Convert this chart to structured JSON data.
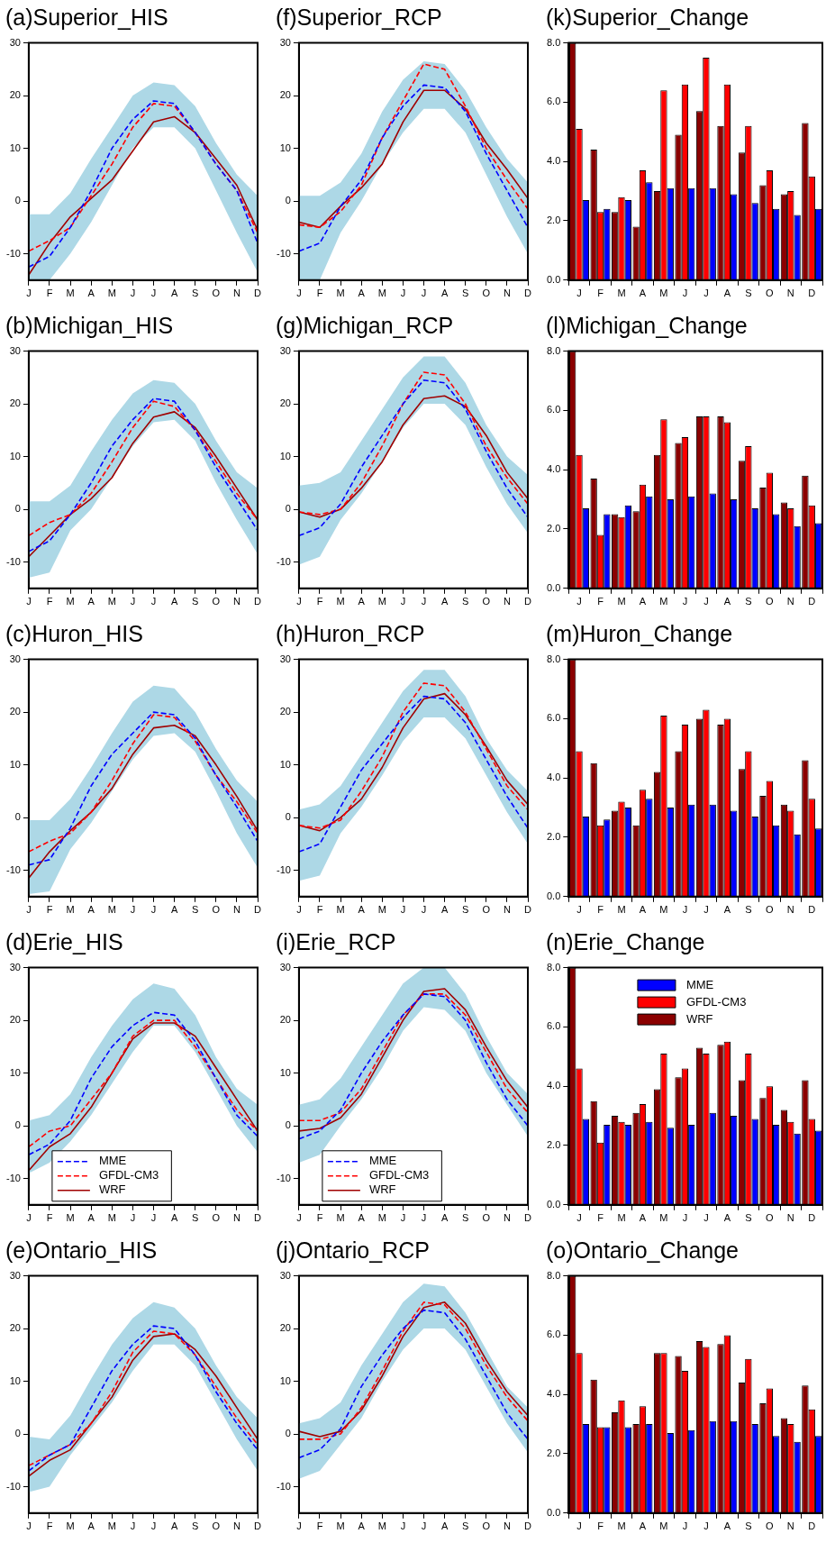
{
  "chart_data": [
    {
      "type": "line",
      "title": "(a)Superior_HIS",
      "categories": [
        "J",
        "F",
        "M",
        "A",
        "M",
        "J",
        "J",
        "A",
        "S",
        "O",
        "N",
        "D"
      ],
      "ylim": [
        -15,
        30
      ],
      "yticks": [
        -10,
        0,
        10,
        20,
        30
      ],
      "series": [
        {
          "color": "#0000ff",
          "line_style": "dashed",
          "values": [
            -12.5,
            -10.5,
            -5,
            2,
            10,
            15.5,
            19,
            18.5,
            13,
            7,
            2,
            -8
          ],
          "lower": [
            -15,
            -15,
            -10,
            -4,
            3,
            10,
            14,
            14,
            10,
            2,
            -6,
            -13.5
          ],
          "upper": [
            -2.5,
            -2.5,
            1.5,
            8,
            14,
            20,
            22.5,
            22,
            18,
            11,
            5,
            1
          ]
        },
        {
          "color": "#ff0000",
          "line_style": "dashed",
          "values": [
            -9.5,
            -7.5,
            -5,
            1,
            7,
            14,
            18.5,
            18,
            13,
            7,
            2,
            -6
          ]
        },
        {
          "color": "#a00000",
          "line_style": "solid",
          "values": [
            -14,
            -8,
            -3,
            0.5,
            4,
            9.5,
            15,
            16,
            13,
            8,
            3,
            -5.5
          ]
        }
      ]
    },
    {
      "type": "line",
      "title": "(b)Michigan_HIS",
      "categories": [
        "J",
        "F",
        "M",
        "A",
        "M",
        "J",
        "J",
        "A",
        "S",
        "O",
        "N",
        "D"
      ],
      "ylim": [
        -15,
        30
      ],
      "yticks": [
        -10,
        0,
        10,
        20,
        30
      ],
      "series": [
        {
          "color": "#0000ff",
          "line_style": "dashed",
          "values": [
            -8,
            -6,
            -1,
            5,
            12,
            17,
            21,
            20.5,
            15,
            8,
            2,
            -4
          ],
          "lower": [
            -13,
            -12,
            -4,
            0,
            6,
            12,
            16.5,
            17,
            13,
            5,
            -2,
            -8.5
          ],
          "upper": [
            1.5,
            1.5,
            4.5,
            11,
            17,
            22,
            24.5,
            24,
            20,
            13,
            7,
            4
          ]
        },
        {
          "color": "#ff0000",
          "line_style": "dashed",
          "values": [
            -5,
            -2.5,
            -1,
            3,
            9,
            15.5,
            20.5,
            19.5,
            15,
            9,
            3,
            -2
          ]
        },
        {
          "color": "#a00000",
          "line_style": "solid",
          "values": [
            -9,
            -5,
            -1,
            2,
            6,
            12.5,
            17.5,
            18.5,
            15.5,
            10,
            4,
            -2
          ]
        }
      ]
    },
    {
      "type": "line",
      "title": "(c)Huron_HIS",
      "categories": [
        "J",
        "F",
        "M",
        "A",
        "M",
        "J",
        "J",
        "A",
        "S",
        "O",
        "N",
        "D"
      ],
      "ylim": [
        -15,
        30
      ],
      "yticks": [
        -10,
        0,
        10,
        20,
        30
      ],
      "series": [
        {
          "color": "#0000ff",
          "line_style": "dashed",
          "values": [
            -9,
            -8,
            -2,
            6,
            12,
            16,
            20,
            19.5,
            15,
            8,
            2,
            -4.5
          ],
          "lower": [
            -14.5,
            -14,
            -6,
            -1,
            5,
            11,
            15.5,
            16,
            12.5,
            5,
            -3,
            -9.5
          ],
          "upper": [
            -0.5,
            -0.5,
            3.5,
            9.5,
            16,
            22,
            25,
            24.5,
            20,
            13,
            7,
            3
          ]
        },
        {
          "color": "#ff0000",
          "line_style": "dashed",
          "values": [
            -6.5,
            -4.5,
            -3,
            1,
            7,
            14,
            19.5,
            19,
            14.5,
            8,
            3,
            -3
          ]
        },
        {
          "color": "#a00000",
          "line_style": "solid",
          "values": [
            -11.5,
            -6.5,
            -2.5,
            1,
            5.5,
            12,
            17,
            17.5,
            15.5,
            10,
            4,
            -2.5
          ]
        }
      ]
    },
    {
      "type": "line",
      "title": "(d)Erie_HIS",
      "categories": [
        "J",
        "F",
        "M",
        "A",
        "M",
        "J",
        "J",
        "A",
        "S",
        "O",
        "N",
        "D"
      ],
      "ylim": [
        -15,
        30
      ],
      "yticks": [
        -10,
        0,
        10,
        20,
        30
      ],
      "legend": "bottom left",
      "series": [
        {
          "name": "MME",
          "color": "#0000ff",
          "line_style": "dashed",
          "values": [
            -5.5,
            -3.5,
            1,
            9,
            15,
            19,
            21.5,
            21,
            16,
            9,
            2,
            -2
          ],
          "lower": [
            -9,
            -7,
            -3,
            2,
            8,
            14,
            19,
            19,
            14,
            7,
            0,
            -5
          ],
          "upper": [
            1,
            2,
            6,
            13,
            19,
            24,
            27,
            26,
            21,
            13,
            7,
            4
          ]
        },
        {
          "name": "GFDL-CM3",
          "color": "#ff0000",
          "line_style": "dashed",
          "values": [
            -4,
            -1,
            0,
            5,
            10,
            17,
            20,
            20,
            15,
            9,
            3,
            -1
          ]
        },
        {
          "name": "WRF",
          "color": "#a00000",
          "line_style": "solid",
          "values": [
            -8.5,
            -4,
            -1.5,
            3.5,
            10,
            16.5,
            19.5,
            19.5,
            17,
            11,
            5,
            -1
          ]
        }
      ]
    },
    {
      "type": "line",
      "title": "(e)Ontario_HIS",
      "categories": [
        "J",
        "F",
        "M",
        "A",
        "M",
        "J",
        "J",
        "A",
        "S",
        "O",
        "N",
        "D"
      ],
      "ylim": [
        -15,
        30
      ],
      "yticks": [
        -10,
        0,
        10,
        20,
        30
      ],
      "series": [
        {
          "color": "#0000ff",
          "line_style": "dashed",
          "values": [
            -7,
            -4,
            -2,
            5,
            12,
            17,
            20.5,
            20,
            15,
            8,
            2,
            -3
          ],
          "lower": [
            -11,
            -10,
            -4,
            1,
            6,
            12,
            17,
            17,
            13,
            6,
            -1,
            -7
          ],
          "upper": [
            -0.5,
            -1,
            3.5,
            10.5,
            17,
            22,
            25,
            24,
            20,
            13,
            7,
            3
          ]
        },
        {
          "color": "#ff0000",
          "line_style": "dashed",
          "values": [
            -6,
            -4,
            -2,
            2,
            8,
            15.5,
            19.5,
            19,
            15,
            9,
            3,
            -2
          ]
        },
        {
          "color": "#a00000",
          "line_style": "solid",
          "values": [
            -8,
            -5,
            -3,
            2,
            7,
            14,
            18.5,
            19,
            16,
            11,
            5,
            -1
          ]
        }
      ]
    },
    {
      "type": "line",
      "title": "(f)Superior_RCP",
      "categories": [
        "J",
        "F",
        "M",
        "A",
        "M",
        "J",
        "J",
        "A",
        "S",
        "O",
        "N",
        "D"
      ],
      "ylim": [
        -15,
        30
      ],
      "yticks": [
        -10,
        0,
        10,
        20,
        30
      ],
      "series": [
        {
          "color": "#0000ff",
          "line_style": "dashed",
          "values": [
            -9.5,
            -8,
            -1,
            4,
            12,
            18,
            22,
            21.5,
            17,
            9,
            2,
            -5
          ],
          "lower": [
            -15,
            -15,
            -6,
            0,
            7,
            13,
            17.5,
            17.5,
            13,
            5,
            -3,
            -10
          ],
          "upper": [
            1,
            1,
            3.5,
            9,
            17,
            23,
            26.5,
            26,
            21,
            14,
            8,
            3.5
          ]
        },
        {
          "color": "#ff0000",
          "line_style": "dashed",
          "values": [
            -4.5,
            -5,
            -2,
            3,
            12,
            19,
            26,
            25,
            18,
            10,
            4,
            -1.5
          ]
        },
        {
          "color": "#a00000",
          "line_style": "solid",
          "values": [
            -4,
            -5,
            -1,
            2.5,
            7,
            15,
            21,
            21,
            17.5,
            11,
            6,
            0.5
          ]
        }
      ]
    },
    {
      "type": "line",
      "title": "(g)Michigan_RCP",
      "categories": [
        "J",
        "F",
        "M",
        "A",
        "M",
        "J",
        "J",
        "A",
        "S",
        "O",
        "N",
        "D"
      ],
      "ylim": [
        -15,
        30
      ],
      "yticks": [
        -10,
        0,
        10,
        20,
        30
      ],
      "series": [
        {
          "color": "#0000ff",
          "line_style": "dashed",
          "values": [
            -5,
            -3.5,
            1,
            8,
            14,
            20,
            24.5,
            24,
            19,
            11,
            4,
            -1.5
          ],
          "lower": [
            -10.5,
            -9,
            -2,
            3,
            9,
            15.5,
            20,
            20,
            16,
            8,
            1,
            -4.5
          ],
          "upper": [
            4.5,
            5,
            7,
            13,
            19,
            25,
            29,
            29,
            24,
            16,
            10,
            6.5
          ]
        },
        {
          "color": "#ff0000",
          "line_style": "dashed",
          "values": [
            -0.5,
            -1,
            0,
            5,
            12,
            20,
            26,
            25.5,
            20,
            12,
            6,
            1
          ]
        },
        {
          "color": "#a00000",
          "line_style": "solid",
          "values": [
            -0.5,
            -1.5,
            0,
            4,
            9,
            16,
            21,
            21.5,
            19.5,
            14,
            7,
            2
          ]
        }
      ]
    },
    {
      "type": "line",
      "title": "(h)Huron_RCP",
      "categories": [
        "J",
        "F",
        "M",
        "A",
        "M",
        "J",
        "J",
        "A",
        "S",
        "O",
        "N",
        "D"
      ],
      "ylim": [
        -15,
        30
      ],
      "yticks": [
        -10,
        0,
        10,
        20,
        30
      ],
      "series": [
        {
          "color": "#0000ff",
          "line_style": "dashed",
          "values": [
            -6.5,
            -5,
            2,
            9,
            14,
            19,
            23,
            22.5,
            18,
            11,
            4,
            -2
          ],
          "lower": [
            -12,
            -11,
            -3,
            2,
            8,
            14.5,
            19,
            19,
            15,
            8,
            1,
            -5
          ],
          "upper": [
            1.5,
            2.5,
            6,
            12,
            18,
            24,
            28,
            28,
            23,
            15,
            9,
            5
          ]
        },
        {
          "color": "#ff0000",
          "line_style": "dashed",
          "values": [
            -1.5,
            -2,
            -0.5,
            5,
            11.5,
            20,
            25.5,
            25,
            20,
            13,
            6,
            1.5
          ]
        },
        {
          "color": "#a00000",
          "line_style": "solid",
          "values": [
            -1.5,
            -2.5,
            0,
            3.5,
            9.5,
            17,
            22.5,
            23.5,
            19.5,
            13.5,
            7,
            2.5
          ]
        }
      ]
    },
    {
      "type": "line",
      "title": "(i)Erie_RCP",
      "categories": [
        "J",
        "F",
        "M",
        "A",
        "M",
        "J",
        "J",
        "A",
        "S",
        "O",
        "N",
        "D"
      ],
      "ylim": [
        -15,
        30
      ],
      "yticks": [
        -10,
        0,
        10,
        20,
        30
      ],
      "legend": "bottom left",
      "series": [
        {
          "name": "MME",
          "color": "#0000ff",
          "line_style": "dashed",
          "values": [
            -2.5,
            -1,
            3,
            10,
            16,
            21,
            25,
            24.5,
            20,
            12,
            5,
            0
          ],
          "lower": [
            -7,
            -5.5,
            0,
            5,
            11,
            18,
            22.5,
            22,
            18,
            10,
            4,
            -2
          ],
          "upper": [
            4,
            5,
            9,
            15,
            21,
            27,
            30,
            30,
            25,
            17,
            10,
            6
          ]
        },
        {
          "name": "GFDL-CM3",
          "color": "#ff0000",
          "line_style": "dashed",
          "values": [
            1,
            1,
            2.5,
            7,
            14,
            21,
            25,
            25,
            21,
            14,
            7,
            2.5
          ]
        },
        {
          "name": "WRF",
          "color": "#a00000",
          "line_style": "solid",
          "values": [
            -1,
            -0.5,
            1.5,
            6,
            13,
            20,
            25.5,
            26,
            22,
            15,
            8.5,
            3.5
          ]
        }
      ]
    },
    {
      "type": "line",
      "title": "(j)Ontario_RCP",
      "categories": [
        "J",
        "F",
        "M",
        "A",
        "M",
        "J",
        "J",
        "A",
        "S",
        "O",
        "N",
        "D"
      ],
      "ylim": [
        -15,
        30
      ],
      "yticks": [
        -10,
        0,
        10,
        20,
        30
      ],
      "series": [
        {
          "color": "#0000ff",
          "line_style": "dashed",
          "values": [
            -4.5,
            -3,
            1,
            9,
            15,
            20,
            23.5,
            23,
            18,
            11,
            4,
            -1
          ],
          "lower": [
            -8.5,
            -7,
            -2,
            3,
            10,
            16,
            20,
            20,
            16,
            9,
            2,
            -3.5
          ],
          "upper": [
            2,
            3,
            6,
            13,
            19,
            25,
            28.5,
            28,
            23,
            16,
            9,
            5
          ]
        },
        {
          "color": "#ff0000",
          "line_style": "dashed",
          "values": [
            -1,
            -1,
            0,
            5,
            12,
            19.5,
            25,
            24.5,
            20,
            13,
            7,
            2.5
          ]
        },
        {
          "color": "#a00000",
          "line_style": "solid",
          "values": [
            0.5,
            -0.5,
            0.5,
            4.5,
            11,
            18.5,
            24,
            25,
            21,
            14,
            8,
            3.5
          ]
        }
      ]
    },
    {
      "type": "bar",
      "title": "(k)Superior_Change",
      "categories": [
        "J",
        "F",
        "M",
        "A",
        "M",
        "J",
        "J",
        "A",
        "S",
        "O",
        "N",
        "D"
      ],
      "ylim": [
        0,
        8
      ],
      "yticks": [
        {
          "value": 0,
          "label": "0.0"
        },
        {
          "value": 2,
          "label": "2.0"
        },
        {
          "value": 4,
          "label": "4.0"
        },
        {
          "value": 6,
          "label": "6.0"
        },
        {
          "value": 8,
          "label": "8.0"
        }
      ],
      "series": [
        {
          "color": "#8b0000",
          "values": [
            8,
            4.4,
            2.3,
            1.8,
            3.0,
            4.9,
            5.7,
            5.2,
            4.3,
            3.2,
            2.9,
            5.3
          ]
        },
        {
          "color": "#ff0000",
          "values": [
            5.1,
            2.3,
            2.8,
            3.7,
            6.4,
            6.6,
            7.5,
            6.6,
            5.2,
            3.7,
            3.0,
            3.5
          ]
        },
        {
          "color": "#0000ff",
          "values": [
            2.7,
            2.4,
            2.7,
            3.3,
            3.1,
            3.1,
            3.1,
            2.9,
            2.6,
            2.4,
            2.2,
            2.4
          ]
        }
      ]
    },
    {
      "type": "bar",
      "title": "(l)Michigan_Change",
      "categories": [
        "J",
        "F",
        "M",
        "A",
        "M",
        "J",
        "J",
        "A",
        "S",
        "O",
        "N",
        "D"
      ],
      "ylim": [
        0,
        8
      ],
      "yticks": [
        {
          "value": 0,
          "label": "0.0"
        },
        {
          "value": 2,
          "label": "2.0"
        },
        {
          "value": 4,
          "label": "4.0"
        },
        {
          "value": 6,
          "label": "6.0"
        },
        {
          "value": 8,
          "label": "8.0"
        }
      ],
      "series": [
        {
          "color": "#8b0000",
          "values": [
            8,
            3.7,
            2.5,
            2.6,
            4.5,
            4.9,
            5.8,
            5.8,
            4.3,
            3.4,
            2.9,
            3.8
          ]
        },
        {
          "color": "#ff0000",
          "values": [
            4.5,
            1.8,
            2.4,
            3.5,
            5.7,
            5.1,
            5.8,
            5.6,
            4.8,
            3.9,
            2.7,
            2.8
          ]
        },
        {
          "color": "#0000ff",
          "values": [
            2.7,
            2.5,
            2.8,
            3.1,
            3.0,
            3.1,
            3.2,
            3.0,
            2.7,
            2.5,
            2.1,
            2.2
          ]
        }
      ]
    },
    {
      "type": "bar",
      "title": "(m)Huron_Change",
      "categories": [
        "J",
        "F",
        "M",
        "A",
        "M",
        "J",
        "J",
        "A",
        "S",
        "O",
        "N",
        "D"
      ],
      "ylim": [
        0,
        8
      ],
      "yticks": [
        {
          "value": 0,
          "label": "0.0"
        },
        {
          "value": 2,
          "label": "2.0"
        },
        {
          "value": 4,
          "label": "4.0"
        },
        {
          "value": 6,
          "label": "6.0"
        },
        {
          "value": 8,
          "label": "8.0"
        }
      ],
      "series": [
        {
          "color": "#8b0000",
          "values": [
            8,
            4.5,
            2.9,
            2.4,
            4.2,
            4.9,
            6.0,
            5.8,
            4.3,
            3.4,
            3.1,
            4.6
          ]
        },
        {
          "color": "#ff0000",
          "values": [
            4.9,
            2.4,
            3.2,
            3.6,
            6.1,
            5.8,
            6.3,
            6.0,
            4.9,
            3.9,
            2.9,
            3.3
          ]
        },
        {
          "color": "#0000ff",
          "values": [
            2.7,
            2.6,
            3.0,
            3.3,
            3.0,
            3.1,
            3.1,
            2.9,
            2.7,
            2.4,
            2.1,
            2.3
          ]
        }
      ]
    },
    {
      "type": "bar",
      "title": "(n)Erie_Change",
      "categories": [
        "J",
        "F",
        "M",
        "A",
        "M",
        "J",
        "J",
        "A",
        "S",
        "O",
        "N",
        "D"
      ],
      "ylim": [
        0,
        8
      ],
      "yticks": [
        {
          "value": 0,
          "label": "0.0"
        },
        {
          "value": 2,
          "label": "2.0"
        },
        {
          "value": 4,
          "label": "4.0"
        },
        {
          "value": 6,
          "label": "6.0"
        },
        {
          "value": 8,
          "label": "8.0"
        }
      ],
      "legend": "top",
      "series": [
        {
          "name": "WRF",
          "color": "#8b0000",
          "values": [
            8,
            3.5,
            3.0,
            3.1,
            3.9,
            4.3,
            5.3,
            5.4,
            4.2,
            3.6,
            3.2,
            4.2
          ]
        },
        {
          "name": "GFDL-CM3",
          "color": "#ff0000",
          "values": [
            4.6,
            2.1,
            2.8,
            3.4,
            5.1,
            4.6,
            5.1,
            5.5,
            5.1,
            4.0,
            2.8,
            2.9
          ]
        },
        {
          "name": "MME",
          "color": "#0000ff",
          "values": [
            2.9,
            2.7,
            2.7,
            2.8,
            2.6,
            2.7,
            3.1,
            3.0,
            2.9,
            2.7,
            2.4,
            2.5
          ]
        }
      ]
    },
    {
      "type": "bar",
      "title": "(o)Ontario_Change",
      "categories": [
        "J",
        "F",
        "M",
        "A",
        "M",
        "J",
        "J",
        "A",
        "S",
        "O",
        "N",
        "D"
      ],
      "ylim": [
        0,
        8
      ],
      "yticks": [
        {
          "value": 0,
          "label": "0.0"
        },
        {
          "value": 2,
          "label": "2.0"
        },
        {
          "value": 4,
          "label": "4.0"
        },
        {
          "value": 6,
          "label": "6.0"
        },
        {
          "value": 8,
          "label": "8.0"
        }
      ],
      "series": [
        {
          "color": "#8b0000",
          "values": [
            8,
            4.5,
            3.4,
            3.0,
            5.4,
            5.3,
            5.8,
            5.7,
            4.4,
            3.7,
            3.2,
            4.3
          ]
        },
        {
          "color": "#ff0000",
          "values": [
            5.4,
            2.9,
            3.8,
            3.6,
            5.4,
            4.8,
            5.6,
            6.0,
            5.2,
            4.2,
            3.0,
            3.5
          ]
        },
        {
          "color": "#0000ff",
          "values": [
            3.0,
            2.9,
            2.9,
            3.0,
            2.7,
            2.8,
            3.1,
            3.1,
            3.0,
            2.6,
            2.4,
            2.6
          ]
        }
      ]
    }
  ]
}
